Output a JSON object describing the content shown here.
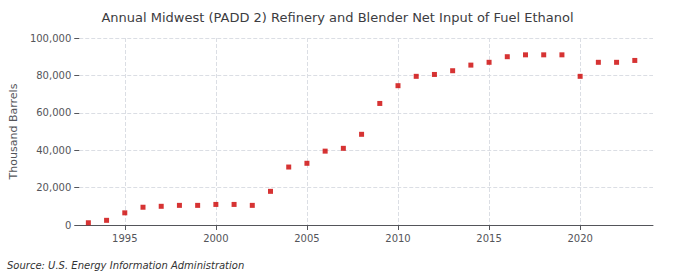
{
  "chart_data": {
    "type": "scatter",
    "title": "Annual Midwest (PADD 2) Refinery and Blender Net Input of Fuel Ethanol",
    "ylabel": "Thousand Barrels",
    "source": "Source: U.S. Energy Information Administration",
    "x": [
      1993,
      1994,
      1995,
      1996,
      1997,
      1998,
      1999,
      2000,
      2001,
      2002,
      2003,
      2004,
      2005,
      2006,
      2007,
      2008,
      2009,
      2010,
      2011,
      2012,
      2013,
      2014,
      2015,
      2016,
      2017,
      2018,
      2019,
      2020,
      2021,
      2022,
      2023
    ],
    "values": [
      1200,
      2500,
      6500,
      9500,
      10000,
      10500,
      10500,
      11000,
      11000,
      10500,
      18000,
      31000,
      33000,
      39500,
      41000,
      48500,
      65000,
      74500,
      79500,
      80500,
      82500,
      85500,
      87000,
      90000,
      91000,
      91000,
      91000,
      79500,
      87000,
      87000,
      88000
    ],
    "color": "#cc0000",
    "marker": "square",
    "xlim": [
      1992.5,
      2024
    ],
    "xticks": [
      1995,
      2000,
      2005,
      2010,
      2015,
      2020
    ],
    "ylim": [
      0,
      100000
    ],
    "yticks": [
      0,
      {
        "value": 20000,
        "label": "20,000"
      },
      {
        "value": 40000,
        "label": "40,000"
      },
      {
        "value": 60000,
        "label": "60,000"
      },
      {
        "value": 80000,
        "label": "80,000"
      },
      {
        "value": 100000,
        "label": "100,000"
      }
    ],
    "grid": true
  }
}
